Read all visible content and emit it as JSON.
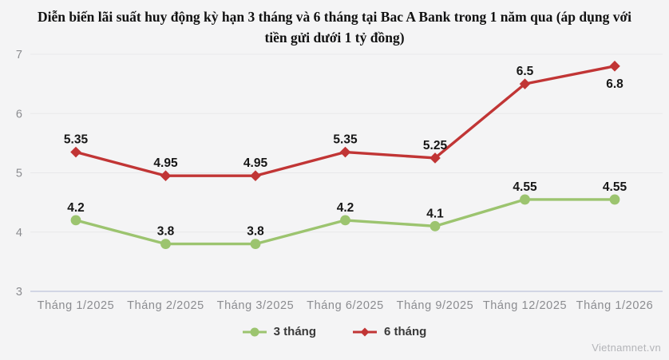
{
  "title": "Diễn biến lãi suất huy động kỳ hạn 3 tháng và 6 tháng tại Bac A Bank trong 1 năm qua (áp dụng với tiền gửi dưới 1 tỷ đồng)",
  "watermark": "Vietnamnet.vn",
  "colors": {
    "background": "#f4f4f5",
    "grid": "#e8e8ea",
    "baseline": "#c6ccdf",
    "tick_text": "#8b8c90",
    "data_label_text": "#161616",
    "legend_text": "#3a3a3a",
    "title_text": "#111111",
    "watermark_text": "#b3b4b8",
    "series_3_thang": "#9cc46f",
    "series_6_thang": "#c13535"
  },
  "chart_data": {
    "type": "line",
    "title": "Diễn biến lãi suất huy động kỳ hạn 3 tháng và 6 tháng tại Bac A Bank trong 1 năm qua (áp dụng với tiền gửi dưới 1 tỷ đồng)",
    "categories": [
      "Tháng 1/2025",
      "Tháng 2/2025",
      "Tháng 3/2025",
      "Tháng 6/2025",
      "Tháng 9/2025",
      "Tháng 12/2025",
      "Tháng 1/2026"
    ],
    "series": [
      {
        "name": "3 tháng",
        "marker": "circle",
        "color": "#9cc46f",
        "values": [
          4.2,
          3.8,
          3.8,
          4.2,
          4.1,
          4.55,
          4.55
        ],
        "labels": [
          "4.2",
          "3.8",
          "3.8",
          "4.2",
          "4.1",
          "4.55",
          "4.55"
        ],
        "label_below_indices": []
      },
      {
        "name": "6 tháng",
        "marker": "diamond",
        "color": "#c13535",
        "values": [
          5.35,
          4.95,
          4.95,
          5.35,
          5.25,
          6.5,
          6.8
        ],
        "labels": [
          "5.35",
          "4.95",
          "4.95",
          "5.35",
          "5.25",
          "6.5",
          "6.8"
        ],
        "label_below_indices": [
          6
        ]
      }
    ],
    "xlabel": "",
    "ylabel": "",
    "ylim": [
      3,
      7
    ],
    "yticks": [
      3,
      4,
      5,
      6,
      7
    ],
    "grid": true,
    "legend_position": "bottom"
  }
}
